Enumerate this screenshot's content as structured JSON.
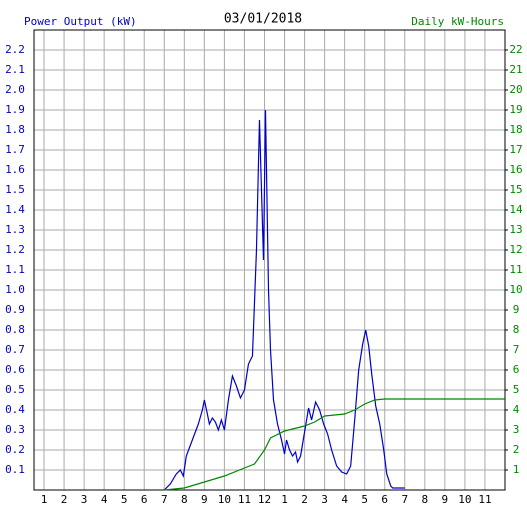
{
  "chart_data": {
    "type": "line",
    "title": "03/01/2018",
    "y_label": "Power Output (kW)",
    "y2_label": "Daily kW-Hours",
    "xlim": [
      0.5,
      24
    ],
    "xticks": [
      1,
      2,
      3,
      4,
      5,
      6,
      7,
      8,
      9,
      10,
      11,
      12,
      {
        "value": 13,
        "label": "1"
      },
      {
        "value": 14,
        "label": "2"
      },
      {
        "value": 15,
        "label": "3"
      },
      {
        "value": 16,
        "label": "4"
      },
      {
        "value": 17,
        "label": "5"
      },
      {
        "value": 18,
        "label": "6"
      },
      {
        "value": 19,
        "label": "7"
      },
      {
        "value": 20,
        "label": "8"
      },
      {
        "value": 21,
        "label": "9"
      },
      {
        "value": 22,
        "label": "10"
      },
      {
        "value": 23,
        "label": "11"
      }
    ],
    "ylim": [
      0,
      2.3
    ],
    "yticks": [
      0.1,
      0.2,
      0.3,
      0.4,
      0.5,
      0.6,
      0.7,
      0.8,
      0.9,
      {
        "value": 1,
        "label": "1.0"
      },
      1.1,
      1.2,
      1.3,
      1.4,
      1.5,
      1.6,
      1.7,
      1.8,
      1.9,
      {
        "value": 2,
        "label": "2.0"
      },
      2.1,
      2.2
    ],
    "y2lim": [
      0,
      23
    ],
    "y2ticks": [
      1,
      2,
      3,
      4,
      5,
      6,
      7,
      8,
      9,
      10,
      11,
      12,
      13,
      14,
      15,
      16,
      17,
      18,
      19,
      20,
      21,
      22
    ],
    "grid": true,
    "series": [
      {
        "color": "#0000cc",
        "axis": "y",
        "x": [
          7.0,
          7.3,
          7.6,
          7.8,
          7.95,
          8.1,
          8.4,
          8.7,
          8.9,
          9.0,
          9.15,
          9.25,
          9.4,
          9.55,
          9.7,
          9.85,
          10.0,
          10.2,
          10.4,
          10.6,
          10.8,
          11.0,
          11.2,
          11.4,
          11.6,
          11.75,
          11.85,
          11.95,
          12.05,
          12.2,
          12.3,
          12.45,
          12.65,
          12.85,
          13.0,
          13.1,
          13.25,
          13.4,
          13.55,
          13.65,
          13.8,
          14.0,
          14.2,
          14.35,
          14.55,
          14.75,
          14.95,
          15.15,
          15.35,
          15.6,
          15.85,
          16.1,
          16.3,
          16.5,
          16.7,
          16.9,
          17.05,
          17.2,
          17.35,
          17.55,
          17.75,
          17.95,
          18.1,
          18.3,
          18.4,
          19.0
        ],
        "values": [
          0,
          0.03,
          0.08,
          0.1,
          0.07,
          0.17,
          0.25,
          0.33,
          0.4,
          0.45,
          0.38,
          0.33,
          0.36,
          0.34,
          0.3,
          0.35,
          0.3,
          0.45,
          0.57,
          0.52,
          0.46,
          0.5,
          0.63,
          0.67,
          1.2,
          1.85,
          1.5,
          1.15,
          1.9,
          1.0,
          0.7,
          0.45,
          0.33,
          0.25,
          0.18,
          0.25,
          0.2,
          0.17,
          0.19,
          0.14,
          0.17,
          0.29,
          0.41,
          0.35,
          0.44,
          0.4,
          0.33,
          0.28,
          0.2,
          0.12,
          0.09,
          0.08,
          0.12,
          0.35,
          0.6,
          0.73,
          0.8,
          0.72,
          0.58,
          0.42,
          0.33,
          0.2,
          0.08,
          0.02,
          0.01,
          0.01
        ]
      },
      {
        "color": "#008800",
        "axis": "y2",
        "x": [
          7.0,
          8.0,
          9.0,
          10.0,
          11.0,
          11.5,
          12.0,
          12.3,
          13.0,
          14.0,
          14.5,
          15.0,
          16.0,
          16.5,
          17.0,
          17.5,
          18.0,
          24.0
        ],
        "values": [
          0,
          0.1,
          0.4,
          0.7,
          1.1,
          1.3,
          2.0,
          2.6,
          2.95,
          3.2,
          3.4,
          3.7,
          3.8,
          4.0,
          4.3,
          4.5,
          4.55,
          4.55
        ]
      }
    ]
  }
}
